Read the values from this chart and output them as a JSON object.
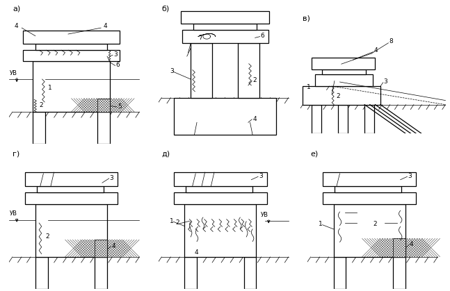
{
  "bg_color": "#ffffff",
  "line_color": "#000000",
  "panels": [
    "а)",
    "б)",
    "в)",
    "г)",
    "д)",
    "е)"
  ],
  "fig_size": [
    6.47,
    4.19
  ],
  "dpi": 100
}
